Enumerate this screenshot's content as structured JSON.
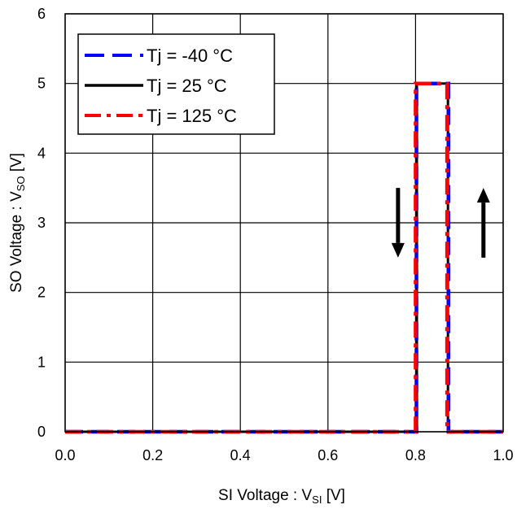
{
  "chart_data": {
    "type": "line",
    "title": "",
    "xlabel": {
      "main": "SI Voltage : V",
      "sub": "SI",
      "unit": " [V]"
    },
    "ylabel": {
      "main": "SO Voltage : V",
      "sub": "SO",
      "unit": " [V]"
    },
    "xlim": [
      0.0,
      1.0
    ],
    "ylim": [
      0,
      6
    ],
    "xticks": [
      "0.0",
      "0.2",
      "0.4",
      "0.6",
      "0.8",
      "1.0"
    ],
    "yticks": [
      "0",
      "1",
      "2",
      "3",
      "4",
      "5",
      "6"
    ],
    "grid": true,
    "legend_position": "top-left",
    "series": [
      {
        "name": "Tj = -40 °C",
        "color": "#0000ff",
        "dash": "dashed",
        "x": [
          0.0,
          0.802,
          0.802,
          0.875,
          0.875,
          1.0
        ],
        "y": [
          0,
          0,
          5,
          5,
          0,
          0
        ],
        "x_full": [
          0.0,
          0.875,
          0.875,
          0.802,
          0.802,
          1.0
        ],
        "y_full": [
          0,
          0,
          5,
          5,
          0,
          0
        ]
      },
      {
        "name": "Tj = 25 °C",
        "color": "#000000",
        "dash": "solid",
        "x": [
          0.0,
          0.803,
          0.803,
          0.874,
          0.874,
          1.0
        ],
        "y": [
          0,
          0,
          5,
          5,
          0,
          0
        ]
      },
      {
        "name": "Tj = 125 °C",
        "color": "#ff0000",
        "dash": "dashdot",
        "x": [
          0.0,
          0.8,
          0.8,
          0.872,
          0.872,
          1.0
        ],
        "y": [
          0,
          0,
          5,
          5,
          0,
          0
        ]
      }
    ],
    "annotations": [
      {
        "type": "arrow-down",
        "x": 0.76,
        "y_from": 3.5,
        "y_to": 2.5
      },
      {
        "type": "arrow-up",
        "x": 0.955,
        "y_from": 2.5,
        "y_to": 3.5
      }
    ]
  }
}
